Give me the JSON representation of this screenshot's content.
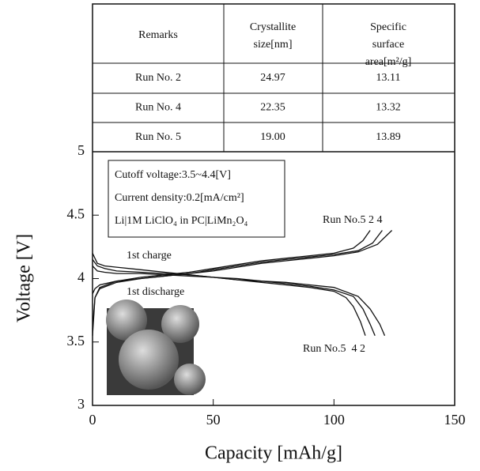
{
  "table": {
    "header": [
      "Remarks",
      "Crystallite size[nm]",
      "Specific surface area[m²/g]"
    ],
    "rows": [
      [
        "Run No. 2",
        "24.97",
        "13.11"
      ],
      [
        "Run No. 4",
        "22.35",
        "13.32"
      ],
      [
        "Run No. 5",
        "19.00",
        "13.89"
      ]
    ]
  },
  "chart_data": {
    "type": "line",
    "xlabel": "Capacity [mAh/g]",
    "ylabel": "Voltage [V]",
    "xlim": [
      0,
      150
    ],
    "xticks": [
      0,
      50,
      100,
      150
    ],
    "ylim": [
      3,
      5
    ],
    "yticks": [
      3,
      3.5,
      4,
      4.5,
      5
    ],
    "conditions": [
      "Cutoff voltage:3.5~4.4[V]",
      "Current density:0.2[mA/cm²]",
      "Li|1M LiClO₄ in PC|LiMn₂O₄"
    ],
    "annotations": [
      "1st charge",
      "1st discharge",
      "Run No.5 2 4",
      "Run No.5  4 2"
    ],
    "series": [
      {
        "color": "#111",
        "x": [
          0,
          1,
          3,
          10,
          20,
          30,
          40,
          50,
          60,
          70,
          80,
          90,
          100,
          108,
          112,
          115
        ],
        "values": [
          3.55,
          3.85,
          3.93,
          3.98,
          4.01,
          4.03,
          4.05,
          4.08,
          4.11,
          4.14,
          4.16,
          4.18,
          4.2,
          4.24,
          4.3,
          4.38
        ]
      },
      {
        "color": "#111",
        "x": [
          0,
          1,
          3,
          10,
          20,
          30,
          40,
          50,
          60,
          70,
          80,
          90,
          100,
          110,
          116,
          120
        ],
        "values": [
          3.6,
          3.85,
          3.92,
          3.97,
          4.0,
          4.02,
          4.04,
          4.07,
          4.1,
          4.13,
          4.15,
          4.17,
          4.19,
          4.22,
          4.28,
          4.38
        ]
      },
      {
        "color": "#111",
        "x": [
          0,
          1,
          3,
          10,
          20,
          30,
          40,
          50,
          60,
          70,
          80,
          90,
          100,
          110,
          118,
          124
        ],
        "values": [
          3.88,
          3.92,
          3.95,
          3.98,
          4.0,
          4.02,
          4.04,
          4.06,
          4.09,
          4.12,
          4.14,
          4.16,
          4.18,
          4.21,
          4.27,
          4.38
        ]
      },
      {
        "color": "#111",
        "x": [
          0,
          2,
          5,
          10,
          20,
          30,
          40,
          50,
          60,
          70,
          80,
          90,
          100,
          105,
          108,
          111,
          113
        ],
        "values": [
          4.2,
          4.12,
          4.1,
          4.09,
          4.07,
          4.05,
          4.03,
          4.01,
          3.99,
          3.97,
          3.95,
          3.93,
          3.9,
          3.85,
          3.78,
          3.66,
          3.55
        ]
      },
      {
        "color": "#111",
        "x": [
          0,
          2,
          5,
          10,
          20,
          30,
          40,
          50,
          60,
          70,
          80,
          90,
          100,
          108,
          112,
          115,
          117
        ],
        "values": [
          4.15,
          4.1,
          4.08,
          4.06,
          4.05,
          4.04,
          4.03,
          4.01,
          3.99,
          3.98,
          3.96,
          3.94,
          3.91,
          3.86,
          3.76,
          3.64,
          3.55
        ]
      },
      {
        "color": "#111",
        "x": [
          0,
          2,
          5,
          10,
          20,
          30,
          40,
          50,
          60,
          70,
          80,
          90,
          100,
          110,
          115,
          119,
          121
        ],
        "values": [
          4.1,
          4.06,
          4.05,
          4.04,
          4.04,
          4.03,
          4.02,
          4.01,
          4.0,
          3.98,
          3.97,
          3.95,
          3.93,
          3.86,
          3.76,
          3.64,
          3.55
        ]
      }
    ]
  }
}
